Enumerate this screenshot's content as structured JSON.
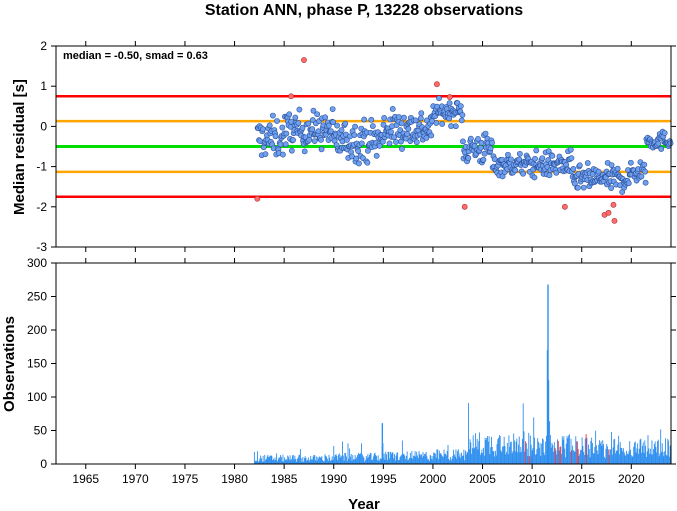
{
  "chart_data": [
    {
      "type": "scatter",
      "title": "Station ANN, phase P, 13228 observations",
      "ylabel": "Median residual [s]",
      "annotation": "median = -0.50, smad = 0.63",
      "xlim": [
        1962,
        2024
      ],
      "ylim": [
        -3,
        2
      ],
      "yticks": [
        -3,
        -2,
        -1,
        0,
        1,
        2
      ],
      "reference_lines": [
        {
          "y": 0.75,
          "color": "#ff0000"
        },
        {
          "y": 0.13,
          "color": "#ffa500"
        },
        {
          "y": -0.5,
          "color": "#00dd00"
        },
        {
          "y": -1.13,
          "color": "#ffa500"
        },
        {
          "y": -1.75,
          "color": "#ff0000"
        }
      ],
      "point_color_inlier": "#6fa0f0",
      "point_color_outlier": "#ff6b6b",
      "outliers": [
        {
          "x": 1987.0,
          "y": 1.65
        },
        {
          "x": 2000.4,
          "y": 1.05
        },
        {
          "x": 1982.3,
          "y": -1.8
        },
        {
          "x": 2003.2,
          "y": -2.0
        },
        {
          "x": 2013.3,
          "y": -2.0
        },
        {
          "x": 2017.3,
          "y": -2.2
        },
        {
          "x": 2017.7,
          "y": -2.15
        },
        {
          "x": 2018.3,
          "y": -2.35
        },
        {
          "x": 2018.2,
          "y": -1.95
        },
        {
          "x": 1985.7,
          "y": 0.75
        },
        {
          "x": 2001.7,
          "y": 0.73
        }
      ],
      "segments": [
        {
          "x_start": 1982.3,
          "x_end": 1985.0,
          "mean": -0.3,
          "spread": 0.55,
          "n": 40
        },
        {
          "x_start": 1985.0,
          "x_end": 1990.0,
          "mean": -0.1,
          "spread": 0.5,
          "n": 80
        },
        {
          "x_start": 1990.0,
          "x_end": 1995.0,
          "mean": -0.35,
          "spread": 0.55,
          "n": 80
        },
        {
          "x_start": 1995.0,
          "x_end": 2000.0,
          "mean": -0.05,
          "spread": 0.5,
          "n": 80
        },
        {
          "x_start": 2000.0,
          "x_end": 2003.0,
          "mean": 0.35,
          "spread": 0.3,
          "n": 45
        },
        {
          "x_start": 2003.0,
          "x_end": 2006.0,
          "mean": -0.55,
          "spread": 0.45,
          "n": 45
        },
        {
          "x_start": 2006.0,
          "x_end": 2010.0,
          "mean": -0.95,
          "spread": 0.3,
          "n": 60
        },
        {
          "x_start": 2010.0,
          "x_end": 2014.0,
          "mean": -0.95,
          "spread": 0.35,
          "n": 60
        },
        {
          "x_start": 2014.0,
          "x_end": 2020.0,
          "mean": -1.3,
          "spread": 0.35,
          "n": 90
        },
        {
          "x_start": 2020.0,
          "x_end": 2021.5,
          "mean": -1.1,
          "spread": 0.35,
          "n": 20
        },
        {
          "x_start": 2021.5,
          "x_end": 2024.0,
          "mean": -0.35,
          "spread": 0.25,
          "n": 35
        }
      ]
    },
    {
      "type": "bar",
      "xlabel": "Year",
      "ylabel": "Observations",
      "xlim": [
        1962,
        2024
      ],
      "ylim": [
        0,
        300
      ],
      "yticks": [
        0,
        50,
        100,
        150,
        200,
        250,
        300
      ],
      "xticks": [
        1965,
        1970,
        1975,
        1980,
        1985,
        1990,
        1995,
        2000,
        2005,
        2010,
        2015,
        2020
      ],
      "bar_color": "#2f8fef",
      "outlier_bar_color": "#ff3030",
      "peaks": [
        {
          "x": 2011.6,
          "value": 268
        },
        {
          "x": 2011.55,
          "value": 170
        },
        {
          "x": 2011.65,
          "value": 125
        },
        {
          "x": 1994.9,
          "value": 61
        }
      ],
      "segments": [
        {
          "x_start": 1982.0,
          "x_end": 1990.0,
          "typical": 10,
          "max": 25
        },
        {
          "x_start": 1990.0,
          "x_end": 1995.0,
          "typical": 12,
          "max": 35
        },
        {
          "x_start": 1995.0,
          "x_end": 2000.0,
          "typical": 14,
          "max": 40
        },
        {
          "x_start": 2000.0,
          "x_end": 2003.5,
          "typical": 16,
          "max": 45
        },
        {
          "x_start": 2003.5,
          "x_end": 2010.0,
          "typical": 35,
          "max": 95
        },
        {
          "x_start": 2010.0,
          "x_end": 2016.0,
          "typical": 32,
          "max": 85
        },
        {
          "x_start": 2016.0,
          "x_end": 2024.0,
          "typical": 28,
          "max": 55
        }
      ]
    }
  ]
}
